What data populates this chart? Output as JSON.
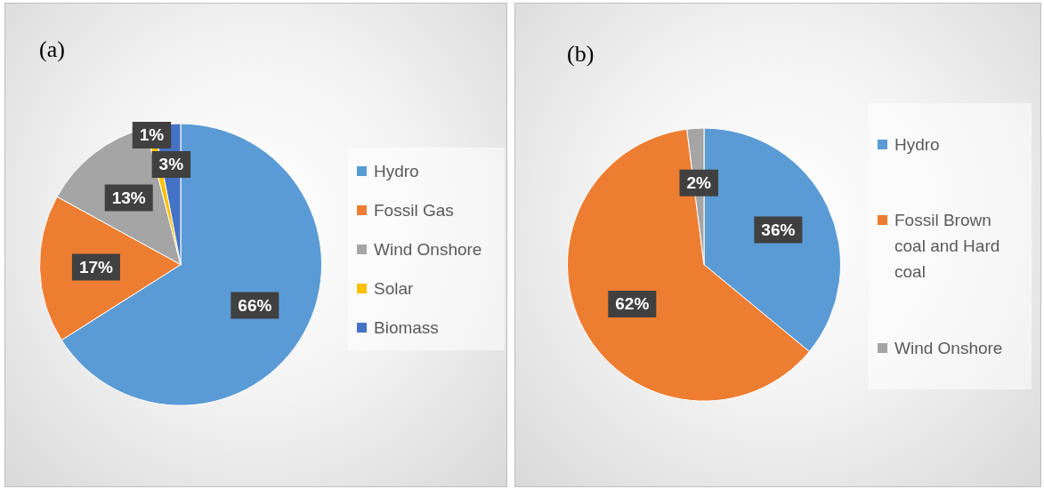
{
  "chart_data": [
    {
      "type": "pie",
      "title": "(a)",
      "categories": [
        "Hydro",
        "Fossil Gas",
        "Wind Onshore",
        "Solar",
        "Biomass"
      ],
      "values": [
        66,
        17,
        13,
        1,
        3
      ],
      "colors": [
        "#5b9bd5",
        "#ed7d31",
        "#a5a5a5",
        "#ffc000",
        "#4472c4"
      ],
      "value_labels": [
        "66%",
        "17%",
        "13%",
        "1%",
        "3%"
      ],
      "legend": "right"
    },
    {
      "type": "pie",
      "title": "(b)",
      "categories": [
        "Hydro",
        "Fossil Brown coal and Hard coal",
        "Wind Onshore"
      ],
      "values": [
        36,
        62,
        2
      ],
      "colors": [
        "#5b9bd5",
        "#ed7d31",
        "#a5a5a5"
      ],
      "value_labels": [
        "36%",
        "62%",
        "2%"
      ],
      "legend": "right"
    }
  ]
}
